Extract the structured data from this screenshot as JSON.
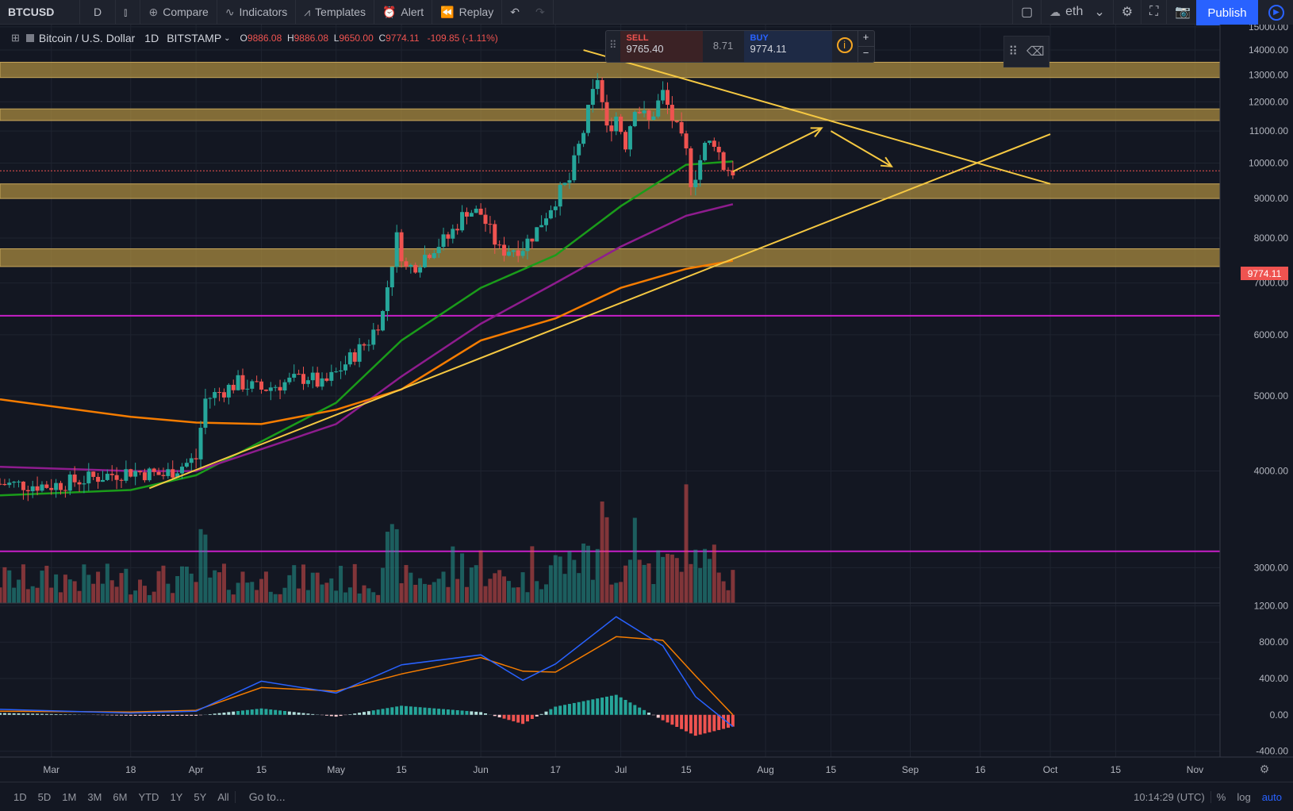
{
  "toolbar": {
    "symbol": "BTCUSD",
    "interval": "D",
    "compare": "Compare",
    "indicators": "Indicators",
    "templates": "Templates",
    "alert": "Alert",
    "replay": "Replay",
    "layout_name": "eth",
    "publish": "Publish"
  },
  "legend": {
    "title": "Bitcoin / U.S. Dollar",
    "interval": "1D",
    "exchange": "BITSTAMP",
    "open_label": "O",
    "open": "9886.08",
    "high_label": "H",
    "high": "9886.08",
    "low_label": "L",
    "low": "9650.00",
    "close_label": "C",
    "close": "9774.11",
    "change": "-109.85 (-1.11%)"
  },
  "trade_panel": {
    "sell_label": "SELL",
    "sell_price": "9765.40",
    "spread": "8.71",
    "buy_label": "BUY",
    "buy_price": "9774.11",
    "plus": "+",
    "minus": "−"
  },
  "current_price_tag": "9774.11",
  "bottom_bar": {
    "ranges": [
      "1D",
      "5D",
      "1M",
      "3M",
      "6M",
      "YTD",
      "1Y",
      "5Y",
      "All"
    ],
    "goto": "Go to...",
    "clock": "10:14:29 (UTC)",
    "percent": "%",
    "log": "log",
    "auto": "auto"
  },
  "colors": {
    "background": "#131722",
    "up": "#26a69a",
    "down": "#ef5350",
    "zone": "#a8893f",
    "trendline": "#f5c842",
    "magenta_line": "#c71fc7",
    "ma_green": "#1a9c1a",
    "ma_purple": "#8e1c8e",
    "ma_orange": "#f57c00",
    "macd_line": "#2962ff",
    "signal_line": "#f57c00",
    "accent": "#2962ff"
  },
  "chart_data": [
    {
      "type": "candlestick",
      "ylim": [
        2700,
        15100
      ],
      "y_ticks": [
        "15000.00",
        "14000.00",
        "13000.00",
        "12000.00",
        "11000.00",
        "10000.00",
        "9000.00",
        "8000.00",
        "7000.00",
        "6000.00",
        "5000.00",
        "4000.00",
        "3000.00"
      ],
      "x_ticks": [
        "Mar",
        "18",
        "Apr",
        "15",
        "May",
        "15",
        "Jun",
        "17",
        "Jul",
        "15",
        "Aug",
        "15",
        "Sep",
        "16",
        "Oct",
        "15",
        "Nov"
      ],
      "x_tick_dates": [
        "2019-03-01",
        "2019-03-18",
        "2019-04-01",
        "2019-04-15",
        "2019-05-01",
        "2019-05-15",
        "2019-06-01",
        "2019-06-17",
        "2019-07-01",
        "2019-07-15",
        "2019-08-01",
        "2019-08-15",
        "2019-09-01",
        "2019-09-16",
        "2019-10-01",
        "2019-10-15",
        "2019-11-01"
      ],
      "date_range": [
        "2019-02-18",
        "2019-11-05"
      ],
      "last_date": "2019-07-25",
      "price_path": [
        [
          "2019-02-18",
          3850
        ],
        [
          "2019-03-01",
          3830
        ],
        [
          "2019-03-18",
          4000
        ],
        [
          "2019-03-25",
          3950
        ],
        [
          "2019-04-01",
          4150
        ],
        [
          "2019-04-03",
          4950
        ],
        [
          "2019-04-10",
          5200
        ],
        [
          "2019-04-15",
          5100
        ],
        [
          "2019-04-25",
          5300
        ],
        [
          "2019-04-28",
          5150
        ],
        [
          "2019-05-01",
          5350
        ],
        [
          "2019-05-08",
          5900
        ],
        [
          "2019-05-11",
          6400
        ],
        [
          "2019-05-14",
          8000
        ],
        [
          "2019-05-16",
          7300
        ],
        [
          "2019-05-18",
          7400
        ],
        [
          "2019-05-22",
          7800
        ],
        [
          "2019-05-25",
          8000
        ],
        [
          "2019-05-29",
          8700
        ],
        [
          "2019-06-01",
          8600
        ],
        [
          "2019-06-05",
          7700
        ],
        [
          "2019-06-10",
          7800
        ],
        [
          "2019-06-13",
          8200
        ],
        [
          "2019-06-17",
          9000
        ],
        [
          "2019-06-20",
          9500
        ],
        [
          "2019-06-23",
          11000
        ],
        [
          "2019-06-26",
          12900
        ],
        [
          "2019-06-28",
          11000
        ],
        [
          "2019-06-30",
          11500
        ],
        [
          "2019-07-02",
          10600
        ],
        [
          "2019-07-04",
          11900
        ],
        [
          "2019-07-07",
          11300
        ],
        [
          "2019-07-10",
          12300
        ],
        [
          "2019-07-12",
          11400
        ],
        [
          "2019-07-15",
          10300
        ],
        [
          "2019-07-16",
          9500
        ],
        [
          "2019-07-17",
          9700
        ],
        [
          "2019-07-19",
          10500
        ],
        [
          "2019-07-21",
          10700
        ],
        [
          "2019-07-23",
          9900
        ],
        [
          "2019-07-25",
          9774
        ]
      ],
      "zones": [
        [
          12900,
          13500
        ],
        [
          11350,
          11750
        ],
        [
          9000,
          9400
        ],
        [
          7350,
          7750
        ]
      ],
      "horizontal_lines": [
        6350,
        3150
      ],
      "trendlines": [
        {
          "from": [
            "2019-06-23",
            14000
          ],
          "to": [
            "2019-10-01",
            9400
          ]
        },
        {
          "from": [
            "2019-03-22",
            3800
          ],
          "to": [
            "2019-10-01",
            10900
          ]
        }
      ],
      "projection_arrows": [
        {
          "from": [
            "2019-07-25",
            9750
          ],
          "to": [
            "2019-08-13",
            11100
          ]
        },
        {
          "from": [
            "2019-08-15",
            11000
          ],
          "to": [
            "2019-08-28",
            9900
          ]
        }
      ],
      "moving_averages": [
        {
          "points": [
            [
              "2019-02-18",
              3720
            ],
            [
              "2019-03-18",
              3780
            ],
            [
              "2019-04-01",
              3950
            ],
            [
              "2019-05-01",
              4900
            ],
            [
              "2019-05-15",
              5900
            ],
            [
              "2019-06-01",
              6900
            ],
            [
              "2019-06-17",
              7600
            ],
            [
              "2019-07-01",
              8800
            ],
            [
              "2019-07-15",
              9950
            ],
            [
              "2019-07-25",
              10050
            ]
          ]
        },
        {
          "points": [
            [
              "2019-02-18",
              4050
            ],
            [
              "2019-03-18",
              4000
            ],
            [
              "2019-04-01",
              4000
            ],
            [
              "2019-05-01",
              4600
            ],
            [
              "2019-05-15",
              5300
            ],
            [
              "2019-06-01",
              6200
            ],
            [
              "2019-06-17",
              7000
            ],
            [
              "2019-07-01",
              7800
            ],
            [
              "2019-07-15",
              8550
            ],
            [
              "2019-07-25",
              8850
            ]
          ]
        },
        {
          "points": [
            [
              "2019-02-18",
              4950
            ],
            [
              "2019-03-18",
              4700
            ],
            [
              "2019-04-01",
              4620
            ],
            [
              "2019-04-15",
              4600
            ],
            [
              "2019-05-01",
              4800
            ],
            [
              "2019-05-15",
              5100
            ],
            [
              "2019-06-01",
              5900
            ],
            [
              "2019-06-17",
              6300
            ],
            [
              "2019-07-01",
              6900
            ],
            [
              "2019-07-15",
              7300
            ],
            [
              "2019-07-25",
              7480
            ]
          ]
        }
      ]
    },
    {
      "type": "macd",
      "ylim": [
        -430,
        1230
      ],
      "y_ticks": [
        "1200.00",
        "800.00",
        "400.00",
        "0.00",
        "-400.00"
      ],
      "macd": [
        [
          "2019-02-18",
          60
        ],
        [
          "2019-03-18",
          20
        ],
        [
          "2019-04-01",
          40
        ],
        [
          "2019-04-15",
          370
        ],
        [
          "2019-05-01",
          240
        ],
        [
          "2019-05-15",
          550
        ],
        [
          "2019-06-01",
          660
        ],
        [
          "2019-06-10",
          380
        ],
        [
          "2019-06-17",
          560
        ],
        [
          "2019-06-30",
          1080
        ],
        [
          "2019-07-10",
          760
        ],
        [
          "2019-07-17",
          200
        ],
        [
          "2019-07-25",
          -130
        ]
      ],
      "signal": [
        [
          "2019-02-18",
          40
        ],
        [
          "2019-03-18",
          30
        ],
        [
          "2019-04-01",
          50
        ],
        [
          "2019-04-15",
          300
        ],
        [
          "2019-05-01",
          260
        ],
        [
          "2019-05-15",
          450
        ],
        [
          "2019-06-01",
          630
        ],
        [
          "2019-06-10",
          480
        ],
        [
          "2019-06-17",
          470
        ],
        [
          "2019-06-30",
          860
        ],
        [
          "2019-07-10",
          820
        ],
        [
          "2019-07-17",
          430
        ],
        [
          "2019-07-25",
          0
        ]
      ]
    }
  ]
}
